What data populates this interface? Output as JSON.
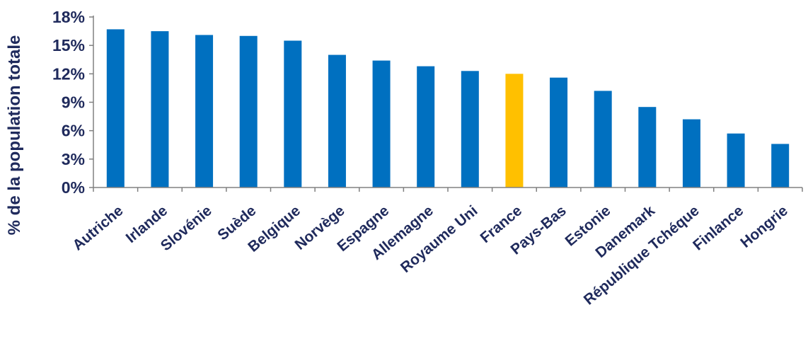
{
  "chart_data": {
    "type": "bar",
    "title": "",
    "xlabel": "",
    "ylabel": "% de la population totale",
    "ylim": [
      0,
      18
    ],
    "yticks": [
      0,
      3,
      6,
      9,
      12,
      15,
      18
    ],
    "ytick_labels": [
      "0%",
      "3%",
      "6%",
      "9%",
      "12%",
      "15%",
      "18%"
    ],
    "grid": false,
    "legend": "none",
    "categories": [
      "Autriche",
      "Irlande",
      "Slovénie",
      "Suède",
      "Belgique",
      "Norvège",
      "Espagne",
      "Allemagne",
      "Royaume Uni",
      "France",
      "Pays-Bas",
      "Estonie",
      "Danemark",
      "République Tchéque",
      "Finlance",
      "Hongrie"
    ],
    "values": [
      16.7,
      16.5,
      16.1,
      16.0,
      15.5,
      14.0,
      13.4,
      12.8,
      12.3,
      12.0,
      11.6,
      10.2,
      8.5,
      7.2,
      5.7,
      4.6
    ],
    "highlight_category": "France",
    "colors": {
      "bar": "#0070c0",
      "highlight": "#ffc000",
      "text": "#1f2a5c",
      "axis": "#808080"
    }
  }
}
